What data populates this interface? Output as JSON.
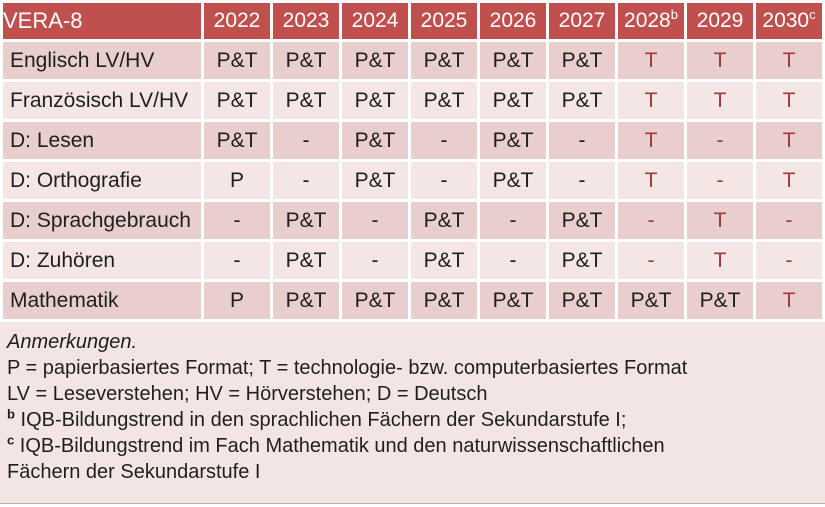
{
  "colors": {
    "header_bg": "#c0504d",
    "header_text": "#ffffff",
    "band_dark": "#e8cecc",
    "band_light": "#f4e6e5",
    "notes_bg": "#f3e5e4",
    "body_text": "#1f1f1f",
    "tech_red": "#9c3b38"
  },
  "table": {
    "title": "VERA-8",
    "years": [
      {
        "label": "2022",
        "sup": ""
      },
      {
        "label": "2023",
        "sup": ""
      },
      {
        "label": "2024",
        "sup": ""
      },
      {
        "label": "2025",
        "sup": ""
      },
      {
        "label": "2026",
        "sup": ""
      },
      {
        "label": "2027",
        "sup": ""
      },
      {
        "label": "2028",
        "sup": "b"
      },
      {
        "label": "2029",
        "sup": ""
      },
      {
        "label": "2030",
        "sup": "c"
      }
    ],
    "rows": [
      {
        "label": "Englisch LV/HV",
        "cells": [
          {
            "text": "P&T",
            "red": false
          },
          {
            "text": "P&T",
            "red": false
          },
          {
            "text": "P&T",
            "red": false
          },
          {
            "text": "P&T",
            "red": false
          },
          {
            "text": "P&T",
            "red": false
          },
          {
            "text": "P&T",
            "red": false
          },
          {
            "text": "T",
            "red": true
          },
          {
            "text": "T",
            "red": true
          },
          {
            "text": "T",
            "red": true
          }
        ]
      },
      {
        "label": "Französisch LV/HV",
        "cells": [
          {
            "text": "P&T",
            "red": false
          },
          {
            "text": "P&T",
            "red": false
          },
          {
            "text": "P&T",
            "red": false
          },
          {
            "text": "P&T",
            "red": false
          },
          {
            "text": "P&T",
            "red": false
          },
          {
            "text": "P&T",
            "red": false
          },
          {
            "text": "T",
            "red": true
          },
          {
            "text": "T",
            "red": true
          },
          {
            "text": "T",
            "red": true
          }
        ]
      },
      {
        "label": "D: Lesen",
        "cells": [
          {
            "text": "P&T",
            "red": false
          },
          {
            "text": "-",
            "red": false
          },
          {
            "text": "P&T",
            "red": false
          },
          {
            "text": "-",
            "red": false
          },
          {
            "text": "P&T",
            "red": false
          },
          {
            "text": "-",
            "red": false
          },
          {
            "text": "T",
            "red": true
          },
          {
            "text": "-",
            "red": true
          },
          {
            "text": "T",
            "red": true
          }
        ]
      },
      {
        "label": "D: Orthografie",
        "cells": [
          {
            "text": "P",
            "red": false
          },
          {
            "text": "-",
            "red": false
          },
          {
            "text": "P&T",
            "red": false
          },
          {
            "text": "-",
            "red": false
          },
          {
            "text": "P&T",
            "red": false
          },
          {
            "text": "-",
            "red": false
          },
          {
            "text": "T",
            "red": true
          },
          {
            "text": "-",
            "red": true
          },
          {
            "text": "T",
            "red": true
          }
        ]
      },
      {
        "label": "D: Sprachgebrauch",
        "cells": [
          {
            "text": "-",
            "red": false
          },
          {
            "text": "P&T",
            "red": false
          },
          {
            "text": "-",
            "red": false
          },
          {
            "text": "P&T",
            "red": false
          },
          {
            "text": "-",
            "red": false
          },
          {
            "text": "P&T",
            "red": false
          },
          {
            "text": "-",
            "red": true
          },
          {
            "text": "T",
            "red": true
          },
          {
            "text": "-",
            "red": true
          }
        ]
      },
      {
        "label": "D: Zuhören",
        "cells": [
          {
            "text": "-",
            "red": false
          },
          {
            "text": "P&T",
            "red": false
          },
          {
            "text": "-",
            "red": false
          },
          {
            "text": "P&T",
            "red": false
          },
          {
            "text": "-",
            "red": false
          },
          {
            "text": "P&T",
            "red": false
          },
          {
            "text": "-",
            "red": true
          },
          {
            "text": "T",
            "red": true
          },
          {
            "text": "-",
            "red": true
          }
        ]
      },
      {
        "label": "Mathematik",
        "cells": [
          {
            "text": "P",
            "red": false
          },
          {
            "text": "P&T",
            "red": false
          },
          {
            "text": "P&T",
            "red": false
          },
          {
            "text": "P&T",
            "red": false
          },
          {
            "text": "P&T",
            "red": false
          },
          {
            "text": "P&T",
            "red": false
          },
          {
            "text": "P&T",
            "red": false
          },
          {
            "text": "P&T",
            "red": false
          },
          {
            "text": "T",
            "red": true
          }
        ]
      }
    ]
  },
  "notes": {
    "lines": [
      {
        "sup": "",
        "text": "Anmerkungen.",
        "italic": true
      },
      {
        "sup": "",
        "text": "P = papierbasiertes Format; T = technologie- bzw. computerbasiertes Format",
        "italic": false
      },
      {
        "sup": "",
        "text": "LV = Leseverstehen; HV = Hörverstehen; D = Deutsch",
        "italic": false
      },
      {
        "sup": "b",
        "text": "IQB-Bildungstrend in den sprachlichen Fächern der Sekundarstufe I;",
        "italic": false
      },
      {
        "sup": "c",
        "text": "IQB-Bildungstrend im Fach Mathematik und den naturwissenschaftlichen",
        "italic": false
      },
      {
        "sup": "",
        "text": "Fächern der Sekundarstufe I",
        "italic": false
      }
    ]
  }
}
